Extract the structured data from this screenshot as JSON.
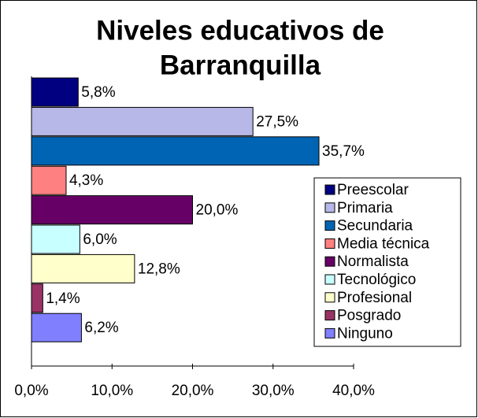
{
  "chart_data": {
    "type": "bar",
    "orientation": "horizontal",
    "title": [
      "Niveles educativos de",
      "Barranquilla"
    ],
    "series": [
      {
        "name": "Preescolar",
        "color": "#000080",
        "values": [
          5.8
        ],
        "value_labels": [
          "5,8%"
        ]
      },
      {
        "name": "Primaria",
        "color": "#b8b8e8",
        "values": [
          27.5
        ],
        "value_labels": [
          "27,5%"
        ]
      },
      {
        "name": "Secundaria",
        "color": "#0064b4",
        "values": [
          35.7
        ],
        "value_labels": [
          "35,7%"
        ]
      },
      {
        "name": "Media técnica",
        "color": "#ff8080",
        "values": [
          4.3
        ],
        "value_labels": [
          "4,3%"
        ]
      },
      {
        "name": "Normalista",
        "color": "#660066",
        "values": [
          20.0
        ],
        "value_labels": [
          "20,0%"
        ]
      },
      {
        "name": "Tecnológico",
        "color": "#c8ffff",
        "values": [
          6.0
        ],
        "value_labels": [
          "6,0%"
        ]
      },
      {
        "name": "Profesional",
        "color": "#ffffcc",
        "values": [
          12.8
        ],
        "value_labels": [
          "12,8%"
        ]
      },
      {
        "name": "Posgrado",
        "color": "#993366",
        "values": [
          1.4
        ],
        "value_labels": [
          "1,4%"
        ]
      },
      {
        "name": "Ninguno",
        "color": "#8080ff",
        "values": [
          6.2
        ],
        "value_labels": [
          "6,2%"
        ]
      }
    ],
    "xlim": [
      0,
      40
    ],
    "xticks": [
      {
        "value": 0,
        "label": "0,0%"
      },
      {
        "value": 10,
        "label": "10,0%"
      },
      {
        "value": 20,
        "label": "20,0%"
      },
      {
        "value": 30,
        "label": "30,0%"
      },
      {
        "value": 40,
        "label": "40,0%"
      }
    ],
    "legend": "right"
  }
}
